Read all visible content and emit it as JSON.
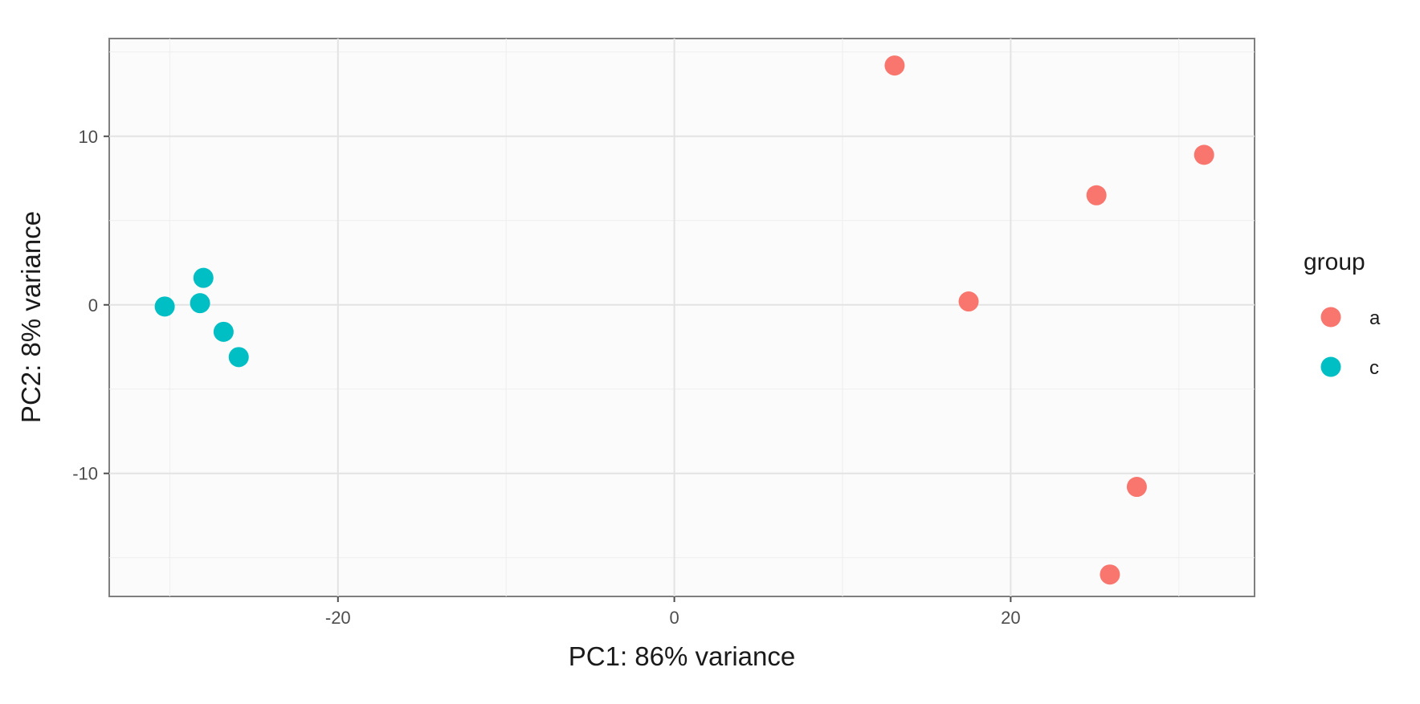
{
  "chart_data": {
    "type": "scatter",
    "xlabel": "PC1: 86% variance",
    "ylabel": "PC2: 8% variance",
    "xlim": [
      -33.6,
      34.5
    ],
    "ylim": [
      -17.3,
      15.8
    ],
    "x_ticks": [
      -20,
      0,
      20
    ],
    "x_tick_labels": [
      "-20",
      "0",
      "20"
    ],
    "x_minor_ticks": [
      -30,
      -10,
      10,
      30
    ],
    "y_ticks": [
      -10,
      0,
      10
    ],
    "y_tick_labels": [
      "-10",
      "0",
      "10"
    ],
    "y_minor_ticks": [
      -15,
      -5,
      5,
      15
    ],
    "grid": true,
    "legend": {
      "title": "group",
      "position": "right"
    },
    "series": [
      {
        "name": "a",
        "color": "#F8766D",
        "points": [
          {
            "x": 13.1,
            "y": 14.2
          },
          {
            "x": 31.5,
            "y": 8.9
          },
          {
            "x": 25.1,
            "y": 6.5
          },
          {
            "x": 17.5,
            "y": 0.2
          },
          {
            "x": 27.5,
            "y": -10.8
          },
          {
            "x": 25.9,
            "y": -16.0
          }
        ]
      },
      {
        "name": "c",
        "color": "#00BFC4",
        "points": [
          {
            "x": -28.0,
            "y": 1.6
          },
          {
            "x": -30.3,
            "y": -0.1
          },
          {
            "x": -28.2,
            "y": 0.1
          },
          {
            "x": -26.8,
            "y": -1.6
          },
          {
            "x": -25.9,
            "y": -3.1
          }
        ]
      }
    ]
  }
}
